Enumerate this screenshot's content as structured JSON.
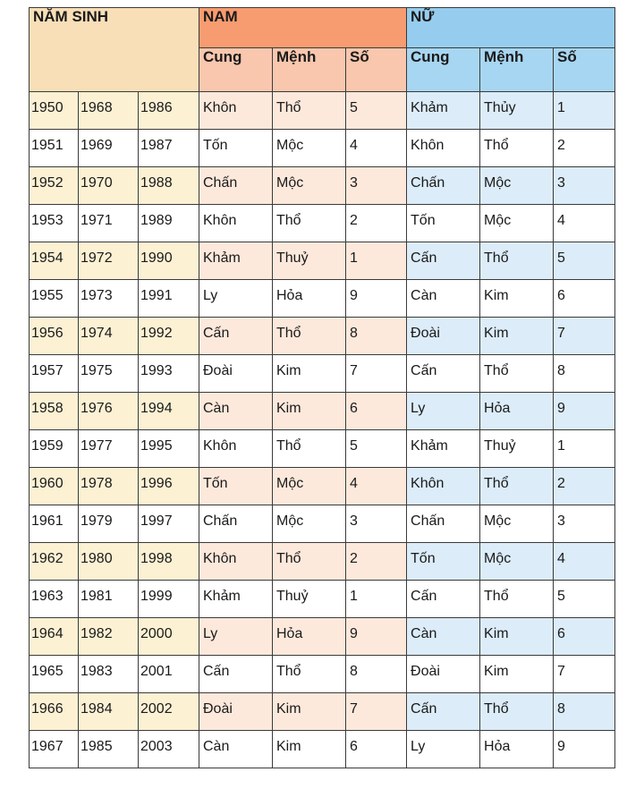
{
  "header": {
    "nam_sinh": "NĂM SINH",
    "nam": "NAM",
    "nu": "NỮ",
    "nam_cols": [
      "Cung",
      "Mệnh",
      "Số"
    ],
    "nu_cols": [
      "Cung",
      "Mệnh",
      "Số"
    ]
  },
  "colors": {
    "header_namsinh": "#f8dfb7",
    "header_nam": "#f79c70",
    "header_nu": "#96cdee",
    "row_year_shade": "#fdf1d4",
    "row_nam_shade": "#fde9dc",
    "row_nu_shade": "#dcecf9"
  },
  "rows": [
    {
      "years": [
        "1950",
        "1968",
        "1986"
      ],
      "nam": [
        "Khôn",
        "Thổ",
        "5"
      ],
      "nu": [
        "Khảm",
        "Thủy",
        "1"
      ]
    },
    {
      "years": [
        "1951",
        "1969",
        "1987"
      ],
      "nam": [
        "Tốn",
        "Mộc",
        "4"
      ],
      "nu": [
        "Khôn",
        "Thổ",
        "2"
      ]
    },
    {
      "years": [
        "1952",
        "1970",
        "1988"
      ],
      "nam": [
        "Chấn",
        "Mộc",
        "3"
      ],
      "nu": [
        "Chấn",
        "Mộc",
        "3"
      ]
    },
    {
      "years": [
        "1953",
        "1971",
        "1989"
      ],
      "nam": [
        "Khôn",
        "Thổ",
        "2"
      ],
      "nu": [
        "Tốn",
        "Mộc",
        "4"
      ]
    },
    {
      "years": [
        "1954",
        "1972",
        "1990"
      ],
      "nam": [
        "Khảm",
        "Thuỷ",
        "1"
      ],
      "nu": [
        "Cấn",
        "Thổ",
        "5"
      ]
    },
    {
      "years": [
        "1955",
        "1973",
        "1991"
      ],
      "nam": [
        "Ly",
        "Hỏa",
        "9"
      ],
      "nu": [
        "Càn",
        "Kim",
        "6"
      ]
    },
    {
      "years": [
        "1956",
        "1974",
        "1992"
      ],
      "nam": [
        "Cấn",
        "Thổ",
        "8"
      ],
      "nu": [
        "Đoài",
        "Kim",
        "7"
      ]
    },
    {
      "years": [
        "1957",
        "1975",
        "1993"
      ],
      "nam": [
        "Đoài",
        "Kim",
        "7"
      ],
      "nu": [
        "Cấn",
        "Thổ",
        "8"
      ]
    },
    {
      "years": [
        "1958",
        "1976",
        "1994"
      ],
      "nam": [
        "Càn",
        "Kim",
        "6"
      ],
      "nu": [
        "Ly",
        "Hỏa",
        "9"
      ]
    },
    {
      "years": [
        "1959",
        "1977",
        "1995"
      ],
      "nam": [
        "Khôn",
        "Thổ",
        "5"
      ],
      "nu": [
        "Khảm",
        "Thuỷ",
        "1"
      ]
    },
    {
      "years": [
        "1960",
        "1978",
        "1996"
      ],
      "nam": [
        "Tốn",
        "Mộc",
        "4"
      ],
      "nu": [
        "Khôn",
        "Thổ",
        "2"
      ]
    },
    {
      "years": [
        "1961",
        "1979",
        "1997"
      ],
      "nam": [
        "Chấn",
        "Mộc",
        "3"
      ],
      "nu": [
        "Chấn",
        "Mộc",
        "3"
      ]
    },
    {
      "years": [
        "1962",
        "1980",
        "1998"
      ],
      "nam": [
        "Khôn",
        "Thổ",
        "2"
      ],
      "nu": [
        "Tốn",
        "Mộc",
        "4"
      ]
    },
    {
      "years": [
        "1963",
        "1981",
        "1999"
      ],
      "nam": [
        "Khảm",
        "Thuỷ",
        "1"
      ],
      "nu": [
        "Cấn",
        "Thổ",
        "5"
      ]
    },
    {
      "years": [
        "1964",
        "1982",
        "2000"
      ],
      "nam": [
        "Ly",
        "Hỏa",
        "9"
      ],
      "nu": [
        "Càn",
        "Kim",
        "6"
      ]
    },
    {
      "years": [
        "1965",
        "1983",
        "2001"
      ],
      "nam": [
        "Cấn",
        "Thổ",
        "8"
      ],
      "nu": [
        "Đoài",
        "Kim",
        "7"
      ]
    },
    {
      "years": [
        "1966",
        "1984",
        "2002"
      ],
      "nam": [
        "Đoài",
        "Kim",
        "7"
      ],
      "nu": [
        "Cấn",
        "Thổ",
        "8"
      ]
    },
    {
      "years": [
        "1967",
        "1985",
        "2003"
      ],
      "nam": [
        "Càn",
        "Kim",
        "6"
      ],
      "nu": [
        "Ly",
        "Hỏa",
        "9"
      ]
    }
  ]
}
